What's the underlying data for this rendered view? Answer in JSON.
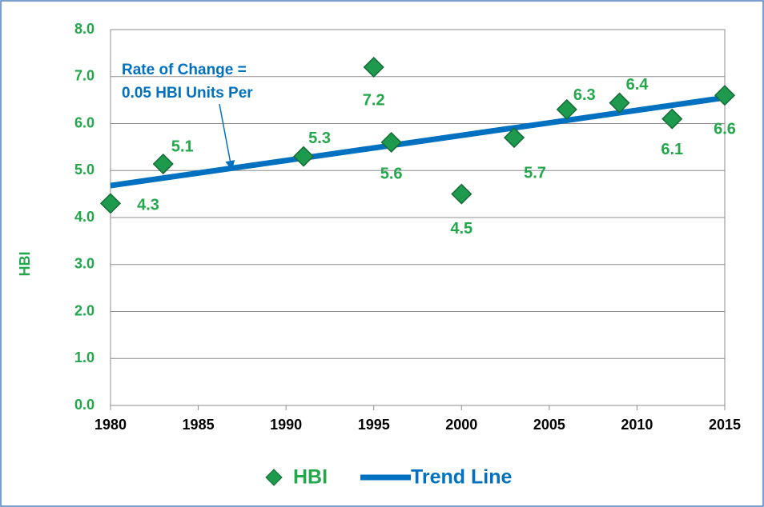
{
  "chart_data": {
    "type": "scatter",
    "y_label": "HBI",
    "annotation": [
      "Rate of Change =",
      "0.05 HBI Units Per"
    ],
    "x": [
      1980,
      1983,
      1991,
      1995,
      1996,
      2000,
      2003,
      2006,
      2009,
      2012,
      2015
    ],
    "series": [
      {
        "name": "HBI",
        "color": "#1e9a4e",
        "mode": "markers",
        "x": [
          1980,
          1983,
          1991,
          1995,
          1996,
          2000,
          2003,
          2006,
          2009,
          2012,
          2015
        ],
        "values": [
          4.3,
          5.14,
          5.3,
          7.2,
          5.6,
          4.5,
          5.7,
          6.3,
          6.44,
          6.1,
          6.6
        ],
        "value_labels": [
          "4.3",
          "5.1",
          "5.3",
          "7.2",
          "5.6",
          "4.5",
          "5.7",
          "6.3",
          "6.4",
          "6.1",
          "6.6"
        ]
      },
      {
        "name": "Trend Line",
        "color": "#0070c0",
        "mode": "line",
        "x": [
          1980,
          2015
        ],
        "values": [
          4.68,
          6.55
        ]
      }
    ],
    "xlim": [
      1980,
      2015
    ],
    "xticks": [
      1980,
      1985,
      1990,
      1995,
      2000,
      2005,
      2010,
      2015
    ],
    "ylim": [
      0,
      8
    ],
    "yticks": [
      {
        "value": 0,
        "label": "0.0"
      },
      {
        "value": 1,
        "label": "1.0"
      },
      {
        "value": 2,
        "label": "2.0"
      },
      {
        "value": 3,
        "label": "3.0"
      },
      {
        "value": 4,
        "label": "4.0"
      },
      {
        "value": 5,
        "label": "5.0"
      },
      {
        "value": 6,
        "label": "6.0"
      },
      {
        "value": 7,
        "label": "7.0"
      },
      {
        "value": 8,
        "label": "8.0"
      }
    ],
    "grid": true,
    "text_color": "#22a84a"
  }
}
